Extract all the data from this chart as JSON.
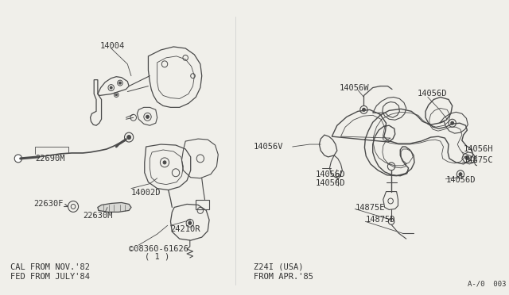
{
  "bg_color": "#f0efea",
  "line_color": "#4a4a4a",
  "text_color": "#333333",
  "bottom_left_text_1": "CAL FROM NOV.'82",
  "bottom_left_text_2": "FED FROM JULY'84",
  "bottom_right_text_1": "Z24I (USA)",
  "bottom_right_text_2": "FROM APR.'85",
  "bottom_far_right": "A-/0  003",
  "label_fs": 7.5,
  "font_family": "monospace"
}
